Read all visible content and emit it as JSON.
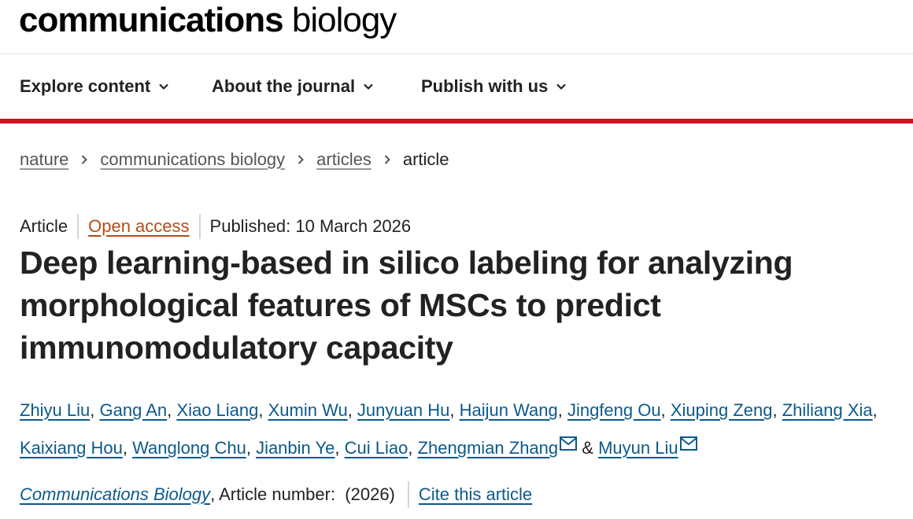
{
  "logo": {
    "bold": "communications",
    "light": "biology"
  },
  "nav": {
    "items": [
      {
        "label": "Explore content"
      },
      {
        "label": "About the journal"
      },
      {
        "label": "Publish with us"
      }
    ]
  },
  "colors": {
    "accent_bar": "#d30f20",
    "link": "#0c5a8c",
    "open_access": "#b44c1b"
  },
  "breadcrumb": {
    "items": [
      {
        "label": "nature"
      },
      {
        "label": "communications biology"
      },
      {
        "label": "articles"
      },
      {
        "label": "article"
      }
    ]
  },
  "article": {
    "type": "Article",
    "access": "Open access",
    "published": "Published: 10 March 2026",
    "title": "Deep learning-based in silico labeling for analyzing morphological features of MSCs to predict immunomodulatory capacity",
    "authors": [
      "Zhiyu Liu",
      "Gang An",
      "Xiao Liang",
      "Xumin Wu",
      "Junyuan Hu",
      "Haijun Wang",
      "Jingfeng Ou",
      "Xiuping Zeng",
      "Zhiliang Xia",
      "Kaixiang Hou",
      "Wanglong Chu",
      "Jianbin Ye",
      "Cui Liao",
      "Zhengmian Zhang",
      "Muyun Liu"
    ],
    "author_connector": "&",
    "journal": "Communications Biology",
    "article_number_text": ", Article number:  (2026)",
    "cite_label": "Cite this article"
  },
  "icons": {
    "nav_chevron": "chevron-down-icon",
    "crumb_sep": "chevron-right-icon",
    "corresponding": "mail-icon"
  }
}
